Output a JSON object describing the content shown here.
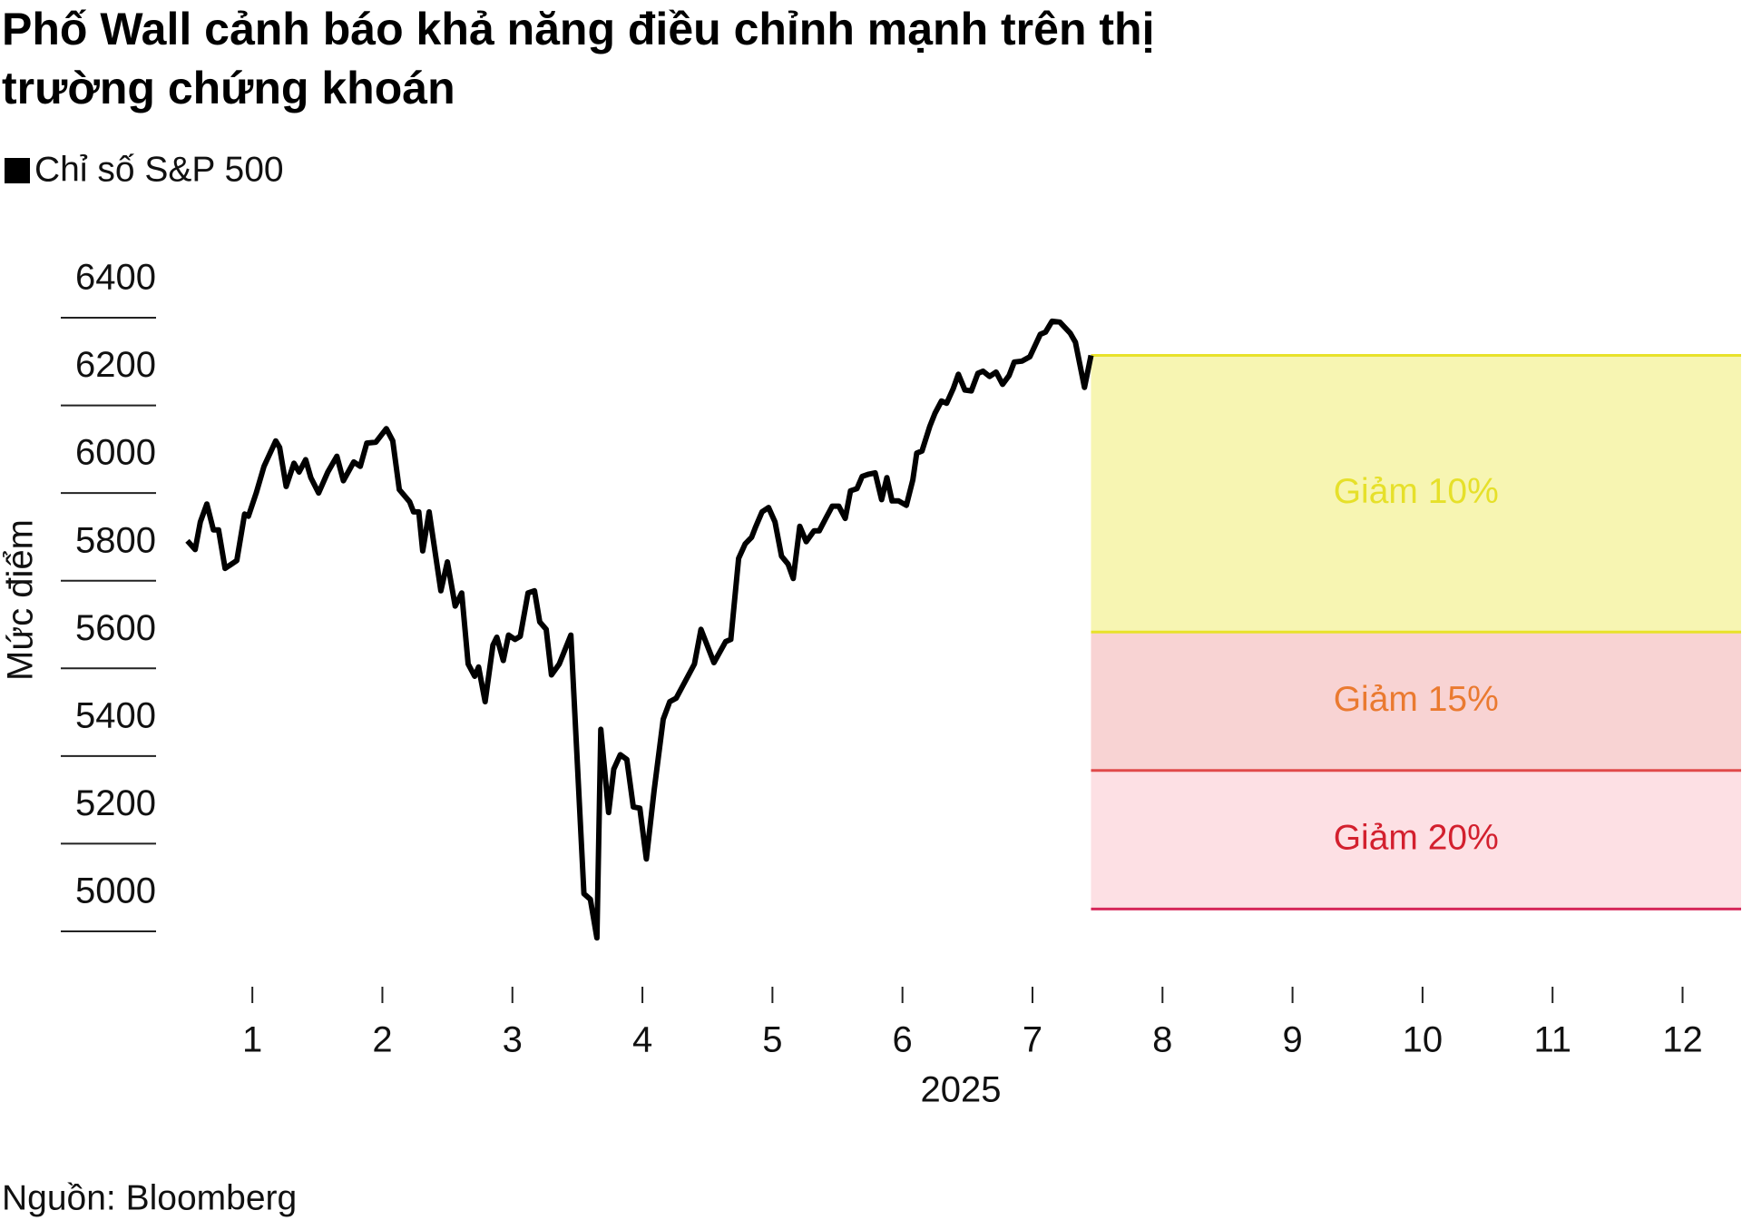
{
  "chart_data": {
    "type": "line",
    "title": "Phố Wall cảnh báo khả năng điều chỉnh mạnh trên thị trường chứng khoán",
    "y_axis_label": "Mức điểm",
    "x_axis_label": "2025",
    "source": "Nguồn: Bloomberg",
    "xlim": [
      0.35,
      12.45
    ],
    "xticks": [
      1,
      2,
      3,
      4,
      5,
      6,
      7,
      8,
      9,
      10,
      11,
      12
    ],
    "ylim": [
      5000,
      6400
    ],
    "yticks": [
      5000,
      5200,
      5400,
      5600,
      5800,
      6000,
      6200,
      6400
    ],
    "x": [
      0.5,
      0.56,
      0.6,
      0.65,
      0.7,
      0.74,
      0.79,
      0.88,
      0.94,
      0.97,
      1.03,
      1.09,
      1.18,
      1.21,
      1.26,
      1.32,
      1.36,
      1.41,
      1.45,
      1.51,
      1.58,
      1.65,
      1.7,
      1.78,
      1.83,
      1.88,
      1.95,
      2.03,
      2.08,
      2.13,
      2.21,
      2.24,
      2.28,
      2.31,
      2.36,
      2.45,
      2.5,
      2.56,
      2.61,
      2.66,
      2.71,
      2.74,
      2.79,
      2.85,
      2.88,
      2.93,
      2.97,
      3.02,
      3.06,
      3.12,
      3.17,
      3.21,
      3.26,
      3.3,
      3.36,
      3.45,
      3.55,
      3.6,
      3.65,
      3.68,
      3.74,
      3.78,
      3.83,
      3.88,
      3.93,
      3.98,
      4.03,
      4.09,
      4.16,
      4.21,
      4.26,
      4.31,
      4.4,
      4.45,
      4.55,
      4.64,
      4.68,
      4.74,
      4.79,
      4.84,
      4.87,
      4.92,
      4.97,
      5.02,
      5.07,
      5.12,
      5.16,
      5.21,
      5.26,
      5.32,
      5.36,
      5.41,
      5.46,
      5.51,
      5.56,
      5.6,
      5.65,
      5.69,
      5.74,
      5.79,
      5.84,
      5.88,
      5.92,
      5.97,
      6.03,
      6.08,
      6.11,
      6.15,
      6.21,
      6.25,
      6.3,
      6.34,
      6.39,
      6.43,
      6.48,
      6.53,
      6.58,
      6.62,
      6.67,
      6.72,
      6.77,
      6.82,
      6.86,
      6.92,
      6.98,
      7.06,
      7.1,
      7.15,
      7.21,
      7.29,
      7.33,
      7.4,
      7.45
    ],
    "series": [
      {
        "name": "Chỉ số S&P 500",
        "color": "#000000",
        "values": [
          5891,
          5871,
          5934,
          5975,
          5916,
          5916,
          5828,
          5846,
          5952,
          5947,
          6000,
          6061,
          6119,
          6104,
          6015,
          6068,
          6048,
          6076,
          6035,
          6000,
          6048,
          6084,
          6028,
          6071,
          6061,
          6114,
          6116,
          6147,
          6119,
          6008,
          5980,
          5957,
          5957,
          5868,
          5957,
          5777,
          5843,
          5742,
          5772,
          5610,
          5582,
          5603,
          5524,
          5653,
          5671,
          5618,
          5676,
          5666,
          5673,
          5772,
          5777,
          5706,
          5689,
          5585,
          5610,
          5676,
          5086,
          5073,
          4985,
          5461,
          5271,
          5370,
          5403,
          5392,
          5284,
          5281,
          5165,
          5322,
          5484,
          5524,
          5532,
          5560,
          5610,
          5689,
          5613,
          5661,
          5666,
          5851,
          5884,
          5899,
          5922,
          5957,
          5967,
          5934,
          5856,
          5838,
          5805,
          5924,
          5889,
          5914,
          5914,
          5942,
          5970,
          5970,
          5942,
          6005,
          6010,
          6038,
          6043,
          6046,
          5985,
          6035,
          5982,
          5982,
          5972,
          6030,
          6091,
          6096,
          6152,
          6182,
          6210,
          6205,
          6238,
          6271,
          6235,
          6233,
          6273,
          6278,
          6266,
          6276,
          6248,
          6268,
          6299,
          6301,
          6311,
          6362,
          6367,
          6392,
          6390,
          6365,
          6344,
          6241,
          6314
        ]
      }
    ],
    "band_start": 7.45,
    "bands": [
      {
        "label": "Giảm 10%",
        "from": 5683,
        "to": 6314,
        "color": "#f7f5b2",
        "edge_color": "#e8e22a",
        "label_color": "#e6e02a"
      },
      {
        "label": "Giảm 15%",
        "from": 5367,
        "to": 5683,
        "color": "#f8d3d3",
        "edge_color": "#e04a4a",
        "label_color": "#ea7a30"
      },
      {
        "label": "Giảm 20%",
        "from": 5051,
        "to": 5367,
        "color": "#fde0e4",
        "edge_color": "#d6285a",
        "label_color": "#d3202e"
      }
    ]
  }
}
